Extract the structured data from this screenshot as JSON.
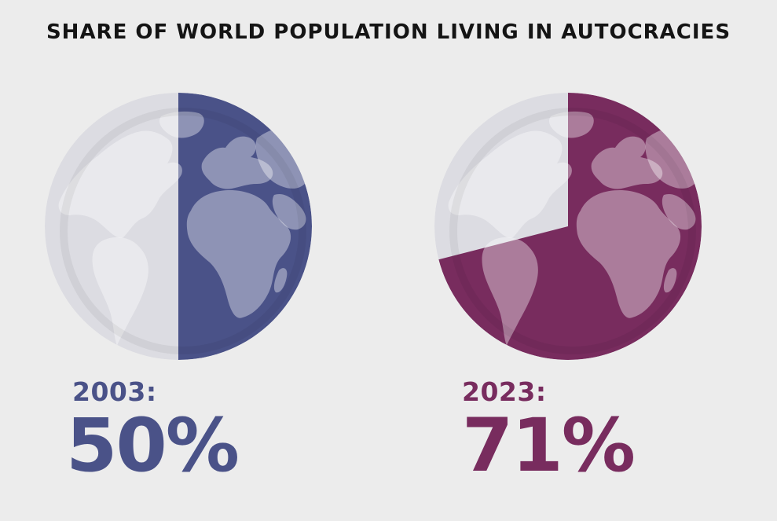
{
  "title": "SHARE OF WORLD POPULATION LIVING IN AUTOCRACIES",
  "colors": {
    "background": "#ececec",
    "title": "#141414",
    "globe_base": "#dcdce2",
    "land_light": "#ffffff",
    "series_2003": "#4a5288",
    "series_2023": "#782c5e"
  },
  "chart_data": [
    {
      "type": "pie",
      "year_label": "2003:",
      "value_label": "50%",
      "value": 50,
      "color": "#4a5288"
    },
    {
      "type": "pie",
      "year_label": "2023:",
      "value_label": "71%",
      "value": 71,
      "color": "#782c5e"
    }
  ]
}
